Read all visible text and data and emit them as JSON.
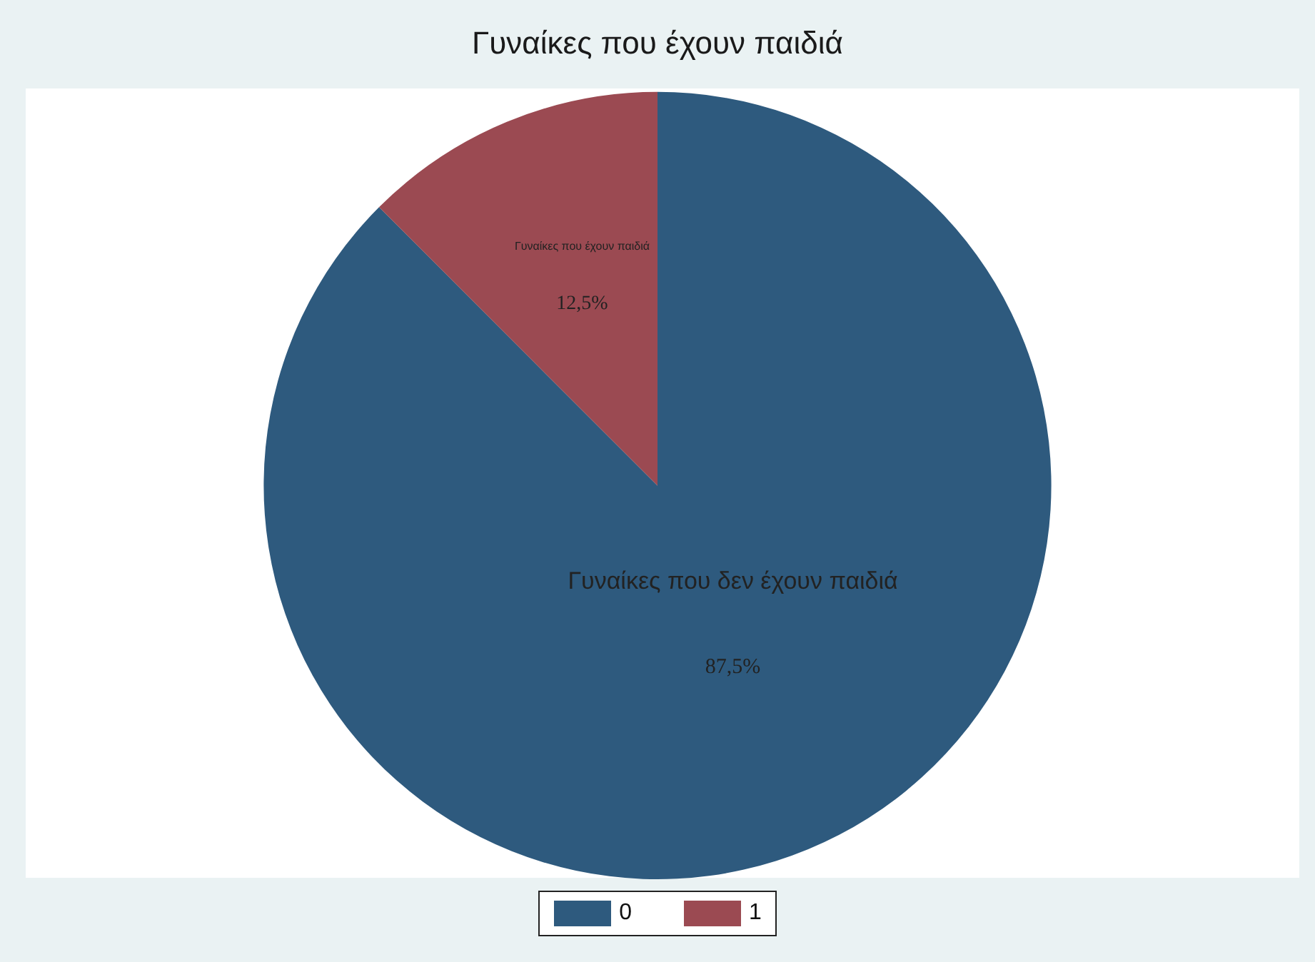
{
  "chart_data": {
    "type": "pie",
    "title": "Γυναίκες που έχουν παιδιά",
    "categories": [
      "0",
      "1"
    ],
    "values": [
      87.5,
      12.5
    ],
    "colors": [
      "#2e5a7e",
      "#9b4a52"
    ],
    "value_labels": [
      "87,5%",
      "12,5%"
    ],
    "annotations": [
      {
        "text": "Γυναίκες που δεν έχουν παιδιά",
        "x": "0"
      },
      {
        "text": "Γυναίκες που έχουν παιδιά",
        "x": "1"
      }
    ],
    "legend": "bottom"
  }
}
